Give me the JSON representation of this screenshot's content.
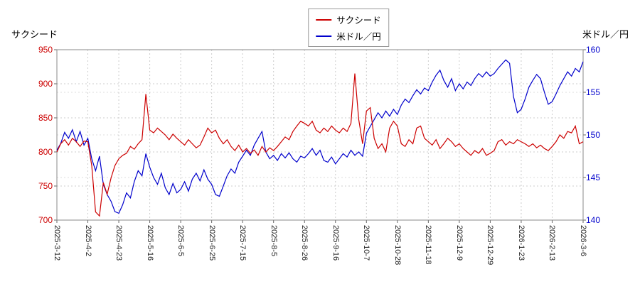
{
  "page": {
    "background": "#ffffff"
  },
  "header": {
    "left_axis_title": "サクシード",
    "right_axis_title": "米ドル／円"
  },
  "legend": [
    {
      "label": "サクシード",
      "color": "#cc0000"
    },
    {
      "label": "米ドル／円",
      "color": "#0000cc"
    }
  ],
  "chart_data": {
    "type": "line",
    "title": "",
    "legend_position": "top-center",
    "grid": true,
    "x_tick_labels": [
      "2025-3-12",
      "2025-4-2",
      "2025-4-23",
      "2025-5-16",
      "2025-6-5",
      "2025-6-25",
      "2025-7-15",
      "2025-8-5",
      "2025-8-26",
      "2025-9-16",
      "2025-10-7",
      "2025-10-28",
      "2025-11-18",
      "2025-12-9",
      "2025-12-29",
      "2026-1-23",
      "2026-2-13",
      "2026-3-6"
    ],
    "left_axis": {
      "label": "サクシード",
      "min": 700,
      "max": 950,
      "ticks": [
        700,
        750,
        800,
        850,
        900,
        950
      ],
      "color": "#cc0000"
    },
    "right_axis": {
      "label": "米ドル／円",
      "min": 140,
      "max": 160,
      "ticks": [
        140,
        145,
        150,
        155,
        160
      ],
      "color": "#0000cc"
    },
    "series": [
      {
        "name": "サクシード",
        "axis": "left",
        "color": "#cc0000",
        "values": [
          800,
          812,
          818,
          810,
          820,
          815,
          808,
          816,
          815,
          780,
          712,
          706,
          755,
          738,
          762,
          780,
          790,
          795,
          798,
          808,
          804,
          812,
          818,
          885,
          832,
          828,
          835,
          830,
          825,
          818,
          826,
          820,
          815,
          810,
          818,
          812,
          806,
          810,
          822,
          835,
          828,
          832,
          820,
          812,
          818,
          808,
          802,
          810,
          800,
          805,
          798,
          803,
          795,
          808,
          800,
          806,
          802,
          808,
          815,
          822,
          818,
          830,
          838,
          845,
          842,
          838,
          845,
          832,
          828,
          835,
          830,
          838,
          832,
          828,
          835,
          830,
          842,
          915,
          848,
          812,
          860,
          865,
          820,
          805,
          812,
          800,
          835,
          845,
          838,
          812,
          808,
          818,
          812,
          835,
          838,
          820,
          815,
          810,
          818,
          805,
          812,
          820,
          815,
          808,
          812,
          805,
          800,
          795,
          802,
          798,
          805,
          795,
          798,
          802,
          815,
          818,
          810,
          815,
          812,
          818,
          815,
          812,
          808,
          812,
          806,
          810,
          805,
          802,
          808,
          815,
          825,
          820,
          830,
          828,
          838,
          812,
          815
        ]
      },
      {
        "name": "米ドル／円",
        "axis": "right",
        "color": "#0000cc",
        "values": [
          148.2,
          149.0,
          150.3,
          149.6,
          150.6,
          149.2,
          150.4,
          148.8,
          149.6,
          147.2,
          145.8,
          147.5,
          144.2,
          143.0,
          142.2,
          141.0,
          140.8,
          141.8,
          143.2,
          142.6,
          144.5,
          145.8,
          145.2,
          147.8,
          146.2,
          145.0,
          144.2,
          145.5,
          143.8,
          143.0,
          144.3,
          143.2,
          143.6,
          144.5,
          143.4,
          144.8,
          145.5,
          144.6,
          145.9,
          144.8,
          144.2,
          143.0,
          142.8,
          144.0,
          145.2,
          146.0,
          145.5,
          146.8,
          147.5,
          148.2,
          147.6,
          148.8,
          149.6,
          150.4,
          148.0,
          147.2,
          147.6,
          147.0,
          147.8,
          147.3,
          147.9,
          147.2,
          146.8,
          147.5,
          147.3,
          147.8,
          148.4,
          147.6,
          148.2,
          147.0,
          146.8,
          147.4,
          146.6,
          147.2,
          147.8,
          147.4,
          148.2,
          147.6,
          148.0,
          147.5,
          150.2,
          151.0,
          151.8,
          152.6,
          152.0,
          152.8,
          152.2,
          153.0,
          152.4,
          153.5,
          154.2,
          153.8,
          154.6,
          155.3,
          154.8,
          155.5,
          155.2,
          156.2,
          157.0,
          157.6,
          156.4,
          155.6,
          156.6,
          155.2,
          156.0,
          155.4,
          156.2,
          155.8,
          156.6,
          157.2,
          156.8,
          157.4,
          156.9,
          157.2,
          157.8,
          158.3,
          158.8,
          158.4,
          154.5,
          152.6,
          153.0,
          154.2,
          155.6,
          156.4,
          157.1,
          156.6,
          155.0,
          153.6,
          153.9,
          154.8,
          155.8,
          156.6,
          157.4,
          156.9,
          157.8,
          157.4,
          158.6
        ]
      }
    ]
  }
}
